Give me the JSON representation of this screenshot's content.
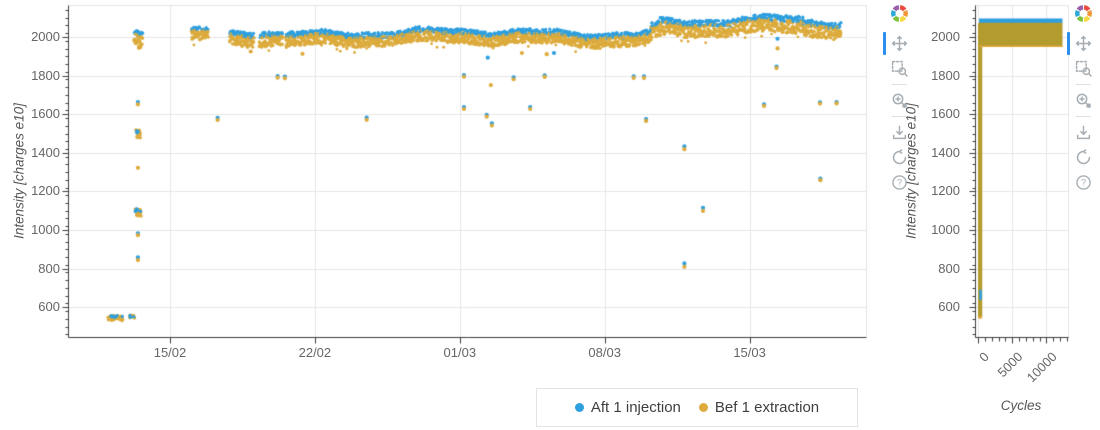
{
  "colors": {
    "blue": "#2e9fdf",
    "gold": "#dcab3c",
    "gold_dense": "#b39b2e",
    "gold_edge": "#dfa83a",
    "grid": "#e6e6e6",
    "frame_outline": "#e5e5e5",
    "axis_line": "#3d3d3d",
    "tick_label": "#666666",
    "axis_label": "#555555",
    "active_tool_bar": "#2b8ff0",
    "tool_icon": "#a7aeb3",
    "logo_colors": [
      "#ec4a41",
      "#f49538",
      "#f6d846",
      "#7fc242",
      "#2aa8d8",
      "#9a5fa8"
    ]
  },
  "legend": {
    "items": [
      {
        "label": "Aft 1 injection",
        "color": "#2e9fdf"
      },
      {
        "label": "Bef 1 extraction",
        "color": "#dcab3c"
      }
    ]
  },
  "toolbar": {
    "tools": [
      {
        "name": "pan-tool-icon",
        "active": true,
        "divider_after": false
      },
      {
        "name": "box-zoom-tool-icon",
        "active": false,
        "divider_after": true
      },
      {
        "name": "wheel-zoom-tool-icon",
        "active": false,
        "divider_after": true
      },
      {
        "name": "save-tool-icon",
        "active": false,
        "divider_after": false
      },
      {
        "name": "reset-tool-icon",
        "active": false,
        "divider_after": false
      },
      {
        "name": "help-tool-icon",
        "active": false,
        "divider_after": false
      }
    ]
  },
  "chart_data": [
    {
      "id": "intensity-vs-time",
      "type": "scatter",
      "title": "",
      "xlabel": "",
      "ylabel": "Intensity [charges e10]",
      "x_axis_kind": "datetime",
      "x_unit": "days relative to 15/02",
      "x_ticks": [
        {
          "x": 0,
          "label": "15/02"
        },
        {
          "x": 7,
          "label": "22/02"
        },
        {
          "x": 14,
          "label": "01/03"
        },
        {
          "x": 21,
          "label": "08/03"
        },
        {
          "x": 28,
          "label": "15/03"
        }
      ],
      "xlim": [
        -4.93,
        33.6
      ],
      "ylim": [
        446,
        2166
      ],
      "y_ticks": [
        600,
        800,
        1000,
        1200,
        1400,
        1600,
        1800,
        2000
      ],
      "y_minor_step": 40,
      "grid": true,
      "series": [
        {
          "name": "Aft 1 injection",
          "color": "#2e9fdf"
        },
        {
          "name": "Bef 1 extraction",
          "color": "#dcab3c"
        }
      ],
      "band_segments": [
        {
          "x0": -1.72,
          "x1": -1.34,
          "gold": [
            1958,
            2016
          ],
          "blue": [
            2010,
            2034
          ]
        },
        {
          "x0": 1.05,
          "x1": 1.45,
          "gold": [
            1968,
            2022
          ],
          "blue": [
            2016,
            2040
          ]
        },
        {
          "x0": 1.52,
          "x1": 1.88,
          "gold": [
            1968,
            2022
          ],
          "blue": [
            2016,
            2040
          ]
        },
        {
          "x0": 2.92,
          "x1": 4.08,
          "gold": [
            1962,
            2020
          ],
          "blue": [
            2012,
            2038
          ]
        },
        {
          "x0": 4.35,
          "x1": 5.42,
          "gold": [
            1962,
            2020
          ],
          "blue": [
            2012,
            2038
          ]
        },
        {
          "x0": 5.62,
          "x1": 23.25,
          "gold": [
            1960,
            2014
          ],
          "blue": [
            2006,
            2034
          ]
        },
        {
          "x0": 23.25,
          "x1": 23.7,
          "gold": [
            1990,
            2052
          ],
          "blue": [
            2046,
            2072
          ]
        },
        {
          "x0": 23.7,
          "x1": 27.2,
          "gold": [
            2002,
            2068
          ],
          "blue": [
            2060,
            2090
          ]
        },
        {
          "x0": 27.2,
          "x1": 30.6,
          "gold": [
            2008,
            2076
          ],
          "blue": [
            2068,
            2098
          ]
        },
        {
          "x0": 30.6,
          "x1": 32.45,
          "gold": [
            2000,
            2068
          ],
          "blue": [
            2060,
            2088
          ]
        }
      ],
      "clusters": [
        {
          "x0": -1.66,
          "x1": -1.42,
          "y0": 1942,
          "y1": 1962,
          "gold": 10,
          "blue": 0
        },
        {
          "x0": -1.66,
          "x1": -1.44,
          "y0": 1478,
          "y1": 1520,
          "gold": 16,
          "blue": 5
        },
        {
          "x0": -1.68,
          "x1": -1.4,
          "y0": 1072,
          "y1": 1112,
          "gold": 22,
          "blue": 6
        },
        {
          "x0": -3.02,
          "x1": -2.28,
          "y0": 531,
          "y1": 557,
          "gold": 46,
          "blue": 10
        },
        {
          "x0": -1.94,
          "x1": -1.72,
          "y0": 534,
          "y1": 558,
          "gold": 10,
          "blue": 4
        }
      ],
      "outliers": {
        "blue": [
          [
            -1.55,
            1663
          ],
          [
            -1.55,
            982
          ],
          [
            -1.55,
            858
          ],
          [
            2.3,
            1581
          ],
          [
            5.2,
            1798
          ],
          [
            5.55,
            1795
          ],
          [
            9.5,
            1583
          ],
          [
            14.2,
            1803
          ],
          [
            14.2,
            1637
          ],
          [
            15.35,
            1893
          ],
          [
            15.3,
            1597
          ],
          [
            15.55,
            1553
          ],
          [
            16.6,
            1791
          ],
          [
            17.4,
            1637
          ],
          [
            18.1,
            1801
          ],
          [
            18.55,
            1917
          ],
          [
            22.4,
            1796
          ],
          [
            22.9,
            1796
          ],
          [
            23.0,
            1575
          ],
          [
            24.85,
            1433
          ],
          [
            24.85,
            827
          ],
          [
            25.75,
            1115
          ],
          [
            28.7,
            1651
          ],
          [
            29.35,
            1991
          ],
          [
            29.3,
            1847
          ],
          [
            31.4,
            1662
          ],
          [
            31.42,
            1266
          ],
          [
            32.2,
            1663
          ]
        ],
        "gold": [
          [
            -1.55,
            1651
          ],
          [
            -1.55,
            1322
          ],
          [
            -1.55,
            973
          ],
          [
            -1.55,
            844
          ],
          [
            2.3,
            1570
          ],
          [
            3.9,
            1925
          ],
          [
            5.2,
            1789
          ],
          [
            5.55,
            1786
          ],
          [
            6.4,
            1913
          ],
          [
            9.5,
            1571
          ],
          [
            14.2,
            1794
          ],
          [
            14.2,
            1627
          ],
          [
            15.3,
            1587
          ],
          [
            15.5,
            1751
          ],
          [
            15.55,
            1541
          ],
          [
            16.6,
            1781
          ],
          [
            17.0,
            1917
          ],
          [
            17.4,
            1627
          ],
          [
            18.1,
            1793
          ],
          [
            18.2,
            1911
          ],
          [
            22.4,
            1788
          ],
          [
            22.9,
            1788
          ],
          [
            23.0,
            1565
          ],
          [
            24.85,
            1419
          ],
          [
            24.85,
            809
          ],
          [
            25.75,
            1099
          ],
          [
            28.7,
            1643
          ],
          [
            29.35,
            1941
          ],
          [
            29.3,
            1839
          ],
          [
            31.4,
            1655
          ],
          [
            31.42,
            1258
          ],
          [
            32.2,
            1656
          ]
        ]
      }
    },
    {
      "id": "intensity-vs-cycles",
      "type": "scatter",
      "title": "",
      "xlabel": "Cycles",
      "ylabel": "Intensity [charges e10]",
      "x_ticks": [
        {
          "x": 0,
          "label": "0"
        },
        {
          "x": 5000,
          "label": "5000"
        },
        {
          "x": 10000,
          "label": "10000"
        }
      ],
      "x_minor_step": 1000,
      "xlim": [
        -440,
        13160
      ],
      "ylim": [
        446,
        2166
      ],
      "y_ticks": [
        600,
        800,
        1000,
        1200,
        1400,
        1600,
        1800,
        2000
      ],
      "y_minor_step": 40,
      "grid": true,
      "bands": {
        "blue_band": {
          "x0": 150,
          "x1": 12350,
          "y0": 2072,
          "y1": 2096
        },
        "gold_band": {
          "x0": 150,
          "x1": 12350,
          "y0": 1952,
          "y1": 2074
        },
        "gold_bottom_edge": {
          "x0": 150,
          "x1": 12350,
          "y": 1952
        },
        "low_cycle_strip": {
          "x0": 0,
          "x1": 620,
          "y0": 545,
          "y1": 2072
        },
        "strip_blue_notch": {
          "x0": 180,
          "x1": 560,
          "y0": 638,
          "y1": 690
        }
      }
    }
  ]
}
